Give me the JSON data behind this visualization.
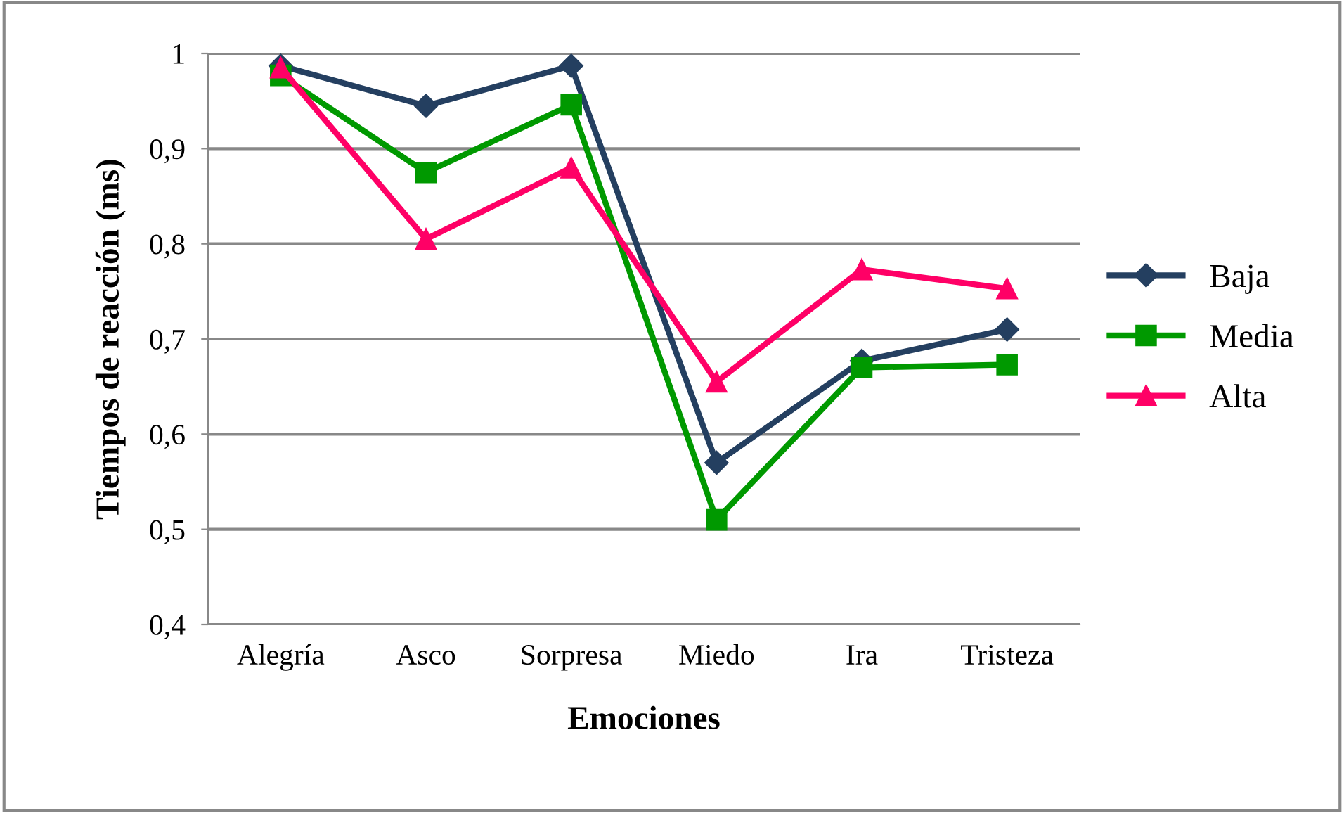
{
  "chart_data": {
    "type": "line",
    "xlabel": "Emociones",
    "ylabel": "Tiempos de reacción (ms)",
    "categories": [
      "Alegría",
      "Asco",
      "Sorpresa",
      "Miedo",
      "Ira",
      "Tristeza"
    ],
    "series": [
      {
        "name": "Baja",
        "color": "#243f60",
        "marker": "diamond",
        "values": [
          0.987,
          0.945,
          0.987,
          0.57,
          0.677,
          0.71
        ]
      },
      {
        "name": "Media",
        "color": "#009900",
        "marker": "square",
        "values": [
          0.977,
          0.875,
          0.946,
          0.51,
          0.67,
          0.673
        ]
      },
      {
        "name": "Alta",
        "color": "#ff0066",
        "marker": "triangle",
        "values": [
          0.985,
          0.805,
          0.88,
          0.655,
          0.773,
          0.753
        ]
      }
    ],
    "ylim": [
      0.4,
      1.0
    ],
    "yticks": [
      {
        "value": 0.4,
        "label": "0,4"
      },
      {
        "value": 0.5,
        "label": "0,5"
      },
      {
        "value": 0.6,
        "label": "0,6"
      },
      {
        "value": 0.7,
        "label": "0,7"
      },
      {
        "value": 0.8,
        "label": "0,8"
      },
      {
        "value": 0.9,
        "label": "0,9"
      },
      {
        "value": 1.0,
        "label": "1"
      }
    ],
    "grid": "y",
    "legend": "right",
    "line_style": "solid"
  }
}
